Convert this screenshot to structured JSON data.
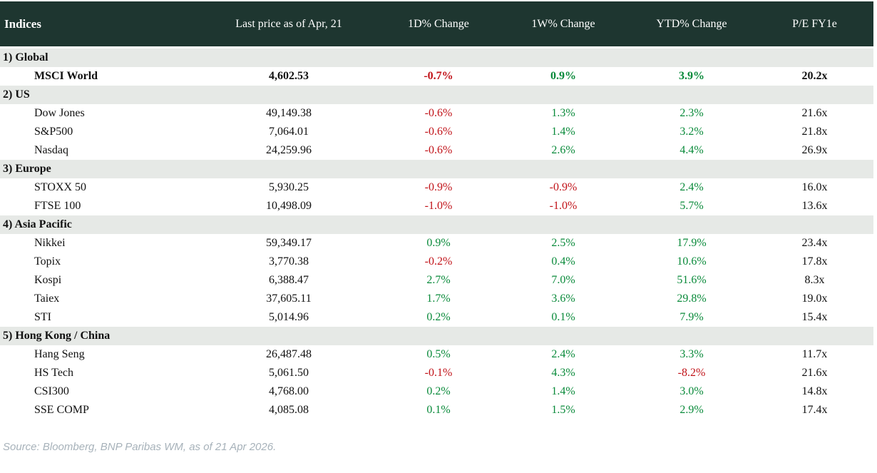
{
  "table": {
    "columns": [
      "Indices",
      "Last price as of Apr, 21",
      "1D% Change",
      "1W% Change",
      "YTD% Change",
      "P/E FY1e"
    ],
    "sections": [
      {
        "label": "1) Global",
        "rows": [
          {
            "name": "MSCI World",
            "price": "4,602.53",
            "d1": "-0.7%",
            "w1": "0.9%",
            "ytd": "3.9%",
            "pe": "20.2x",
            "bold": true
          }
        ]
      },
      {
        "label": "2) US",
        "rows": [
          {
            "name": "Dow Jones",
            "price": "49,149.38",
            "d1": "-0.6%",
            "w1": "1.3%",
            "ytd": "2.3%",
            "pe": "21.6x"
          },
          {
            "name": "S&P500",
            "price": "7,064.01",
            "d1": "-0.6%",
            "w1": "1.4%",
            "ytd": "3.2%",
            "pe": "21.8x"
          },
          {
            "name": "Nasdaq",
            "price": "24,259.96",
            "d1": "-0.6%",
            "w1": "2.6%",
            "ytd": "4.4%",
            "pe": "26.9x"
          }
        ]
      },
      {
        "label": "3) Europe",
        "rows": [
          {
            "name": "STOXX 50",
            "price": "5,930.25",
            "d1": "-0.9%",
            "w1": "-0.9%",
            "ytd": "2.4%",
            "pe": "16.0x"
          },
          {
            "name": "FTSE 100",
            "price": "10,498.09",
            "d1": "-1.0%",
            "w1": "-1.0%",
            "ytd": "5.7%",
            "pe": "13.6x"
          }
        ]
      },
      {
        "label": "4) Asia Pacific",
        "rows": [
          {
            "name": "Nikkei",
            "price": "59,349.17",
            "d1": "0.9%",
            "w1": "2.5%",
            "ytd": "17.9%",
            "pe": "23.4x"
          },
          {
            "name": "Topix",
            "price": "3,770.38",
            "d1": "-0.2%",
            "w1": "0.4%",
            "ytd": "10.6%",
            "pe": "17.8x"
          },
          {
            "name": "Kospi",
            "price": "6,388.47",
            "d1": "2.7%",
            "w1": "7.0%",
            "ytd": "51.6%",
            "pe": "8.3x"
          },
          {
            "name": "Taiex",
            "price": "37,605.11",
            "d1": "1.7%",
            "w1": "3.6%",
            "ytd": "29.8%",
            "pe": "19.0x"
          },
          {
            "name": "STI",
            "price": "5,014.96",
            "d1": "0.2%",
            "w1": "0.1%",
            "ytd": "7.9%",
            "pe": "15.4x"
          }
        ]
      },
      {
        "label": "5) Hong Kong / China",
        "rows": [
          {
            "name": "Hang Seng",
            "price": "26,487.48",
            "d1": "0.5%",
            "w1": "2.4%",
            "ytd": "3.3%",
            "pe": "11.7x"
          },
          {
            "name": "HS Tech",
            "price": "5,061.50",
            "d1": "-0.1%",
            "w1": "4.3%",
            "ytd": "-8.2%",
            "pe": "21.6x"
          },
          {
            "name": "CSI300",
            "price": "4,768.00",
            "d1": "0.2%",
            "w1": "1.4%",
            "ytd": "3.0%",
            "pe": "14.8x"
          },
          {
            "name": "SSE COMP",
            "price": "4,085.08",
            "d1": "0.1%",
            "w1": "1.5%",
            "ytd": "2.9%",
            "pe": "17.4x"
          }
        ]
      }
    ]
  },
  "footer": {
    "source": "Source: Bloomberg, BNP Paribas WM, as of 21 Apr 2026."
  },
  "colors": {
    "header_bg": "#1e3630",
    "section_bg": "#e6e9e6",
    "positive": "#098a3a",
    "negative": "#c11218",
    "text": "#111111",
    "source_text": "#a7b2ba"
  }
}
